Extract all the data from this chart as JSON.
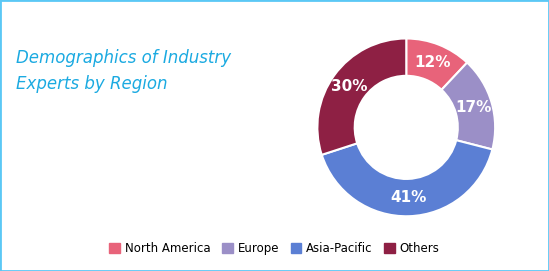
{
  "title": "Demographics of Industry\nExperts by Region",
  "title_color": "#1baae1",
  "title_fontsize": 12,
  "labels": [
    "North America",
    "Europe",
    "Asia-Pacific",
    "Others"
  ],
  "values": [
    12,
    17,
    41,
    30
  ],
  "colors": [
    "#e8637a",
    "#9b8fc7",
    "#5b7fd4",
    "#8e2044"
  ],
  "pct_labels": [
    "12%",
    "17%",
    "41%",
    "30%"
  ],
  "donut_width": 0.42,
  "background_color": "#ffffff",
  "border_color": "#5bc8f5",
  "legend_fontsize": 8.5,
  "pct_fontsize": 11,
  "pct_color": "white"
}
